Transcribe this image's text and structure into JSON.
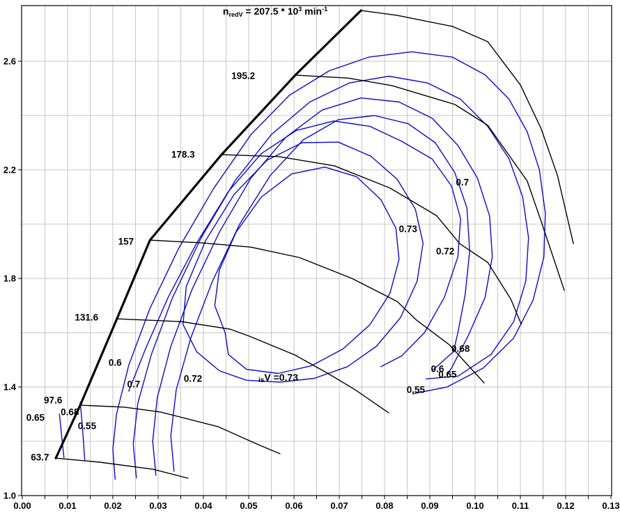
{
  "chart_data": {
    "type": "contour-map",
    "description": "Compressor map: pressure ratio vs corrected mass flow with reduced-speed lines, surge line and isentropic efficiency contours",
    "title": {
      "n": "n",
      "sub": "redV",
      "eq": " = 207.5 * 10",
      "exp": "3",
      "unit": " min",
      "uexp": "-1"
    },
    "iso_label": {
      "sub": "is",
      "main": "V =0.73"
    },
    "colors": {
      "line": "#000000",
      "surge": "#000000",
      "contour": "#0b0bc8",
      "grid": "#c6c6c6",
      "background": "#ffffff"
    },
    "x_axis": {
      "range": [
        0,
        0.13
      ],
      "minor_step": 0.005,
      "label_step": 0.01,
      "labels": [
        "0.00",
        "0.01",
        "0.02",
        "0.03",
        "0.04",
        "0.05",
        "0.06",
        "0.07",
        "0.08",
        "0.09",
        "0.10",
        "0.11",
        "0.12",
        "0.13"
      ]
    },
    "y_axis": {
      "range": [
        1.0,
        2.805
      ],
      "grid_step": 0.2,
      "labels": [
        {
          "text": "1.0",
          "value": 1.0
        },
        {
          "text": "1.4",
          "value": 1.4
        },
        {
          "text": "1.8",
          "value": 1.8
        },
        {
          "text": "2.2",
          "value": 2.2
        },
        {
          "text": "2.6",
          "value": 2.6
        }
      ]
    },
    "surge_line": {
      "points": [
        [
          0.0074,
          1.138
        ],
        [
          0.0128,
          1.333
        ],
        [
          0.0209,
          1.651
        ],
        [
          0.0282,
          1.941
        ],
        [
          0.044,
          2.256
        ],
        [
          0.0603,
          2.549
        ],
        [
          0.0748,
          2.787
        ]
      ]
    },
    "speed_lines": [
      {
        "value": "63.7",
        "label_pos": [
          0.0039,
          1.141
        ],
        "points": [
          [
            0.0074,
            1.138
          ],
          [
            0.0171,
            1.123
          ],
          [
            0.0289,
            1.097
          ],
          [
            0.0366,
            1.064
          ]
        ]
      },
      {
        "value": "97.6",
        "label_pos": [
          0.0068,
          1.351
        ],
        "points": [
          [
            0.0128,
            1.333
          ],
          [
            0.0225,
            1.326
          ],
          [
            0.0305,
            1.308
          ],
          [
            0.0432,
            1.254
          ],
          [
            0.0525,
            1.185
          ],
          [
            0.0569,
            1.154
          ]
        ]
      },
      {
        "value": "131.6",
        "label_pos": [
          0.0142,
          1.656
        ],
        "points": [
          [
            0.0209,
            1.651
          ],
          [
            0.0351,
            1.641
          ],
          [
            0.0459,
            1.613
          ],
          [
            0.0502,
            1.587
          ],
          [
            0.0602,
            1.518
          ],
          [
            0.0674,
            1.451
          ],
          [
            0.0735,
            1.39
          ],
          [
            0.0809,
            1.305
          ]
        ]
      },
      {
        "value": "157",
        "label_pos": [
          0.0229,
          1.936
        ],
        "points": [
          [
            0.0282,
            1.941
          ],
          [
            0.0397,
            1.931
          ],
          [
            0.0505,
            1.915
          ],
          [
            0.0612,
            1.877
          ],
          [
            0.0728,
            1.8
          ],
          [
            0.0828,
            1.715
          ],
          [
            0.0871,
            1.646
          ],
          [
            0.0943,
            1.556
          ],
          [
            0.102,
            1.415
          ]
        ]
      },
      {
        "value": "178.3",
        "label_pos": [
          0.0355,
          2.256
        ],
        "points": [
          [
            0.044,
            2.256
          ],
          [
            0.0566,
            2.249
          ],
          [
            0.0689,
            2.215
          ],
          [
            0.0812,
            2.133
          ],
          [
            0.0915,
            2.031
          ],
          [
            0.0966,
            1.928
          ],
          [
            0.1028,
            1.859
          ],
          [
            0.1079,
            1.723
          ],
          [
            0.1102,
            1.631
          ]
        ]
      },
      {
        "value": "195.2",
        "label_pos": [
          0.0488,
          2.546
        ],
        "points": [
          [
            0.0603,
            2.549
          ],
          [
            0.072,
            2.538
          ],
          [
            0.0817,
            2.51
          ],
          [
            0.0955,
            2.441
          ],
          [
            0.1028,
            2.364
          ],
          [
            0.1115,
            2.159
          ],
          [
            0.1146,
            2.01
          ],
          [
            0.1197,
            1.756
          ]
        ]
      },
      {
        "value": "207.5",
        "label_pos": null,
        "points": [
          [
            0.0748,
            2.787
          ],
          [
            0.0828,
            2.769
          ],
          [
            0.0951,
            2.728
          ],
          [
            0.1028,
            2.672
          ],
          [
            0.11,
            2.513
          ],
          [
            0.1146,
            2.351
          ],
          [
            0.1182,
            2.179
          ],
          [
            0.1202,
            2.036
          ],
          [
            0.1217,
            1.928
          ]
        ]
      }
    ],
    "efficiency_contours": [
      {
        "value": "0.55",
        "closed": false,
        "points": [
          [
            0.0205,
            1.06
          ],
          [
            0.02,
            1.17
          ],
          [
            0.0208,
            1.3
          ],
          [
            0.0235,
            1.48
          ],
          [
            0.0282,
            1.69
          ],
          [
            0.0345,
            1.91
          ],
          [
            0.0422,
            2.13
          ],
          [
            0.0505,
            2.33
          ],
          [
            0.059,
            2.475
          ],
          [
            0.0678,
            2.565
          ],
          [
            0.0765,
            2.615
          ],
          [
            0.086,
            2.635
          ],
          [
            0.095,
            2.615
          ],
          [
            0.1022,
            2.55
          ],
          [
            0.1075,
            2.46
          ],
          [
            0.1115,
            2.34
          ],
          [
            0.1142,
            2.2
          ],
          [
            0.1155,
            2.04
          ],
          [
            0.1152,
            1.88
          ],
          [
            0.1128,
            1.72
          ],
          [
            0.1085,
            1.58
          ],
          [
            0.1018,
            1.47
          ],
          [
            0.0938,
            1.4
          ],
          [
            0.0862,
            1.375
          ]
        ]
      },
      {
        "value": "0.6",
        "closed": false,
        "points": [
          [
            0.0252,
            1.065
          ],
          [
            0.0245,
            1.19
          ],
          [
            0.0255,
            1.34
          ],
          [
            0.0285,
            1.52
          ],
          [
            0.0332,
            1.73
          ],
          [
            0.0395,
            1.95
          ],
          [
            0.047,
            2.16
          ],
          [
            0.055,
            2.33
          ],
          [
            0.0635,
            2.45
          ],
          [
            0.0722,
            2.52
          ],
          [
            0.081,
            2.545
          ],
          [
            0.0895,
            2.52
          ],
          [
            0.0968,
            2.46
          ],
          [
            0.1028,
            2.36
          ],
          [
            0.1075,
            2.24
          ],
          [
            0.1105,
            2.1
          ],
          [
            0.1118,
            1.95
          ],
          [
            0.1112,
            1.79
          ],
          [
            0.1085,
            1.64
          ],
          [
            0.1035,
            1.52
          ],
          [
            0.0962,
            1.44
          ],
          [
            0.0892,
            1.43
          ]
        ]
      },
      {
        "value": "0.65",
        "closed": false,
        "points": [
          [
            0.0295,
            1.075
          ],
          [
            0.0288,
            1.2
          ],
          [
            0.0298,
            1.36
          ],
          [
            0.0328,
            1.55
          ],
          [
            0.0375,
            1.76
          ],
          [
            0.0435,
            1.97
          ],
          [
            0.0505,
            2.17
          ],
          [
            0.0582,
            2.32
          ],
          [
            0.0662,
            2.42
          ],
          [
            0.0748,
            2.465
          ],
          [
            0.0832,
            2.45
          ],
          [
            0.0905,
            2.39
          ],
          [
            0.0962,
            2.29
          ],
          [
            0.1005,
            2.17
          ],
          [
            0.1032,
            2.03
          ],
          [
            0.1038,
            1.88
          ],
          [
            0.1022,
            1.73
          ],
          [
            0.0985,
            1.59
          ],
          [
            0.0948,
            1.47
          ],
          [
            0.0938,
            1.445
          ]
        ]
      },
      {
        "value": "0.68",
        "closed": false,
        "points": [
          [
            0.0335,
            1.09
          ],
          [
            0.0328,
            1.22
          ],
          [
            0.034,
            1.39
          ],
          [
            0.0372,
            1.58
          ],
          [
            0.042,
            1.79
          ],
          [
            0.048,
            2.0
          ],
          [
            0.0548,
            2.18
          ],
          [
            0.062,
            2.31
          ],
          [
            0.0698,
            2.385
          ],
          [
            0.0778,
            2.4
          ],
          [
            0.0852,
            2.37
          ],
          [
            0.0912,
            2.3
          ],
          [
            0.0955,
            2.19
          ],
          [
            0.0982,
            2.06
          ],
          [
            0.0988,
            1.9
          ],
          [
            0.0978,
            1.74
          ],
          [
            0.0962,
            1.6
          ],
          [
            0.0952,
            1.53
          ],
          [
            0.0905,
            1.46
          ]
        ]
      },
      {
        "value": "0.7",
        "closed": false,
        "points": [
          [
            0.0235,
            1.385
          ],
          [
            0.0272,
            1.54
          ],
          [
            0.0322,
            1.73
          ],
          [
            0.0385,
            1.93
          ],
          [
            0.0455,
            2.12
          ],
          [
            0.0528,
            2.26
          ],
          [
            0.0605,
            2.345
          ],
          [
            0.0688,
            2.38
          ],
          [
            0.0768,
            2.36
          ],
          [
            0.0838,
            2.305
          ],
          [
            0.0905,
            2.24
          ],
          [
            0.0948,
            2.14
          ],
          [
            0.0968,
            2.02
          ],
          [
            0.0962,
            1.88
          ],
          [
            0.0932,
            1.73
          ],
          [
            0.0888,
            1.6
          ],
          [
            0.0838,
            1.515
          ],
          [
            0.0792,
            1.475
          ]
        ]
      },
      {
        "value": "0.72",
        "closed": true,
        "points": [
          [
            0.0385,
            1.53
          ],
          [
            0.0355,
            1.63
          ],
          [
            0.0362,
            1.77
          ],
          [
            0.0405,
            1.94
          ],
          [
            0.0468,
            2.11
          ],
          [
            0.054,
            2.235
          ],
          [
            0.0618,
            2.3
          ],
          [
            0.0698,
            2.302
          ],
          [
            0.077,
            2.25
          ],
          [
            0.0828,
            2.165
          ],
          [
            0.0868,
            2.055
          ],
          [
            0.0885,
            1.93
          ],
          [
            0.0872,
            1.79
          ],
          [
            0.0835,
            1.655
          ],
          [
            0.0782,
            1.55
          ],
          [
            0.0718,
            1.475
          ],
          [
            0.0645,
            1.432
          ],
          [
            0.057,
            1.418
          ],
          [
            0.0495,
            1.425
          ],
          [
            0.0435,
            1.46
          ]
        ]
      },
      {
        "value": "0.73",
        "closed": true,
        "points": [
          [
            0.0448,
            1.6
          ],
          [
            0.0425,
            1.7
          ],
          [
            0.0435,
            1.83
          ],
          [
            0.0472,
            1.97
          ],
          [
            0.0528,
            2.1
          ],
          [
            0.0595,
            2.185
          ],
          [
            0.0668,
            2.21
          ],
          [
            0.0738,
            2.175
          ],
          [
            0.0792,
            2.09
          ],
          [
            0.0825,
            1.985
          ],
          [
            0.0832,
            1.87
          ],
          [
            0.0812,
            1.745
          ],
          [
            0.0768,
            1.63
          ],
          [
            0.0708,
            1.54
          ],
          [
            0.0638,
            1.478
          ],
          [
            0.0565,
            1.45
          ],
          [
            0.0495,
            1.465
          ],
          [
            0.0455,
            1.52
          ]
        ]
      },
      {
        "value": "0.68-left-arc",
        "closed": false,
        "points": [
          [
            0.0128,
            1.345
          ],
          [
            0.0133,
            1.25
          ],
          [
            0.0138,
            1.13
          ]
        ]
      },
      {
        "value": "0.65-left-arc",
        "closed": false,
        "points": [
          [
            0.0082,
            1.3
          ],
          [
            0.0087,
            1.22
          ],
          [
            0.0092,
            1.14
          ]
        ]
      }
    ],
    "contour_labels": [
      {
        "text": "0.65",
        "v": 0.0029,
        "pi": 1.287
      },
      {
        "text": "0.68",
        "v": 0.0105,
        "pi": 1.308
      },
      {
        "text": "0.55",
        "v": 0.0143,
        "pi": 1.256
      },
      {
        "text": "0.6",
        "v": 0.0205,
        "pi": 1.49
      },
      {
        "text": "0.7",
        "v": 0.0246,
        "pi": 1.41
      },
      {
        "text": "0.72",
        "v": 0.0377,
        "pi": 1.431
      },
      {
        "text": "0.7",
        "v": 0.0972,
        "pi": 2.154
      },
      {
        "text": "0.73",
        "v": 0.0852,
        "pi": 1.982
      },
      {
        "text": "0.72",
        "v": 0.0934,
        "pi": 1.9
      },
      {
        "text": "0.68",
        "v": 0.0968,
        "pi": 1.541
      },
      {
        "text": "0.6",
        "v": 0.0917,
        "pi": 1.467
      },
      {
        "text": "0.65",
        "v": 0.0939,
        "pi": 1.446
      },
      {
        "text": "0.55",
        "v": 0.0869,
        "pi": 1.39
      }
    ]
  }
}
